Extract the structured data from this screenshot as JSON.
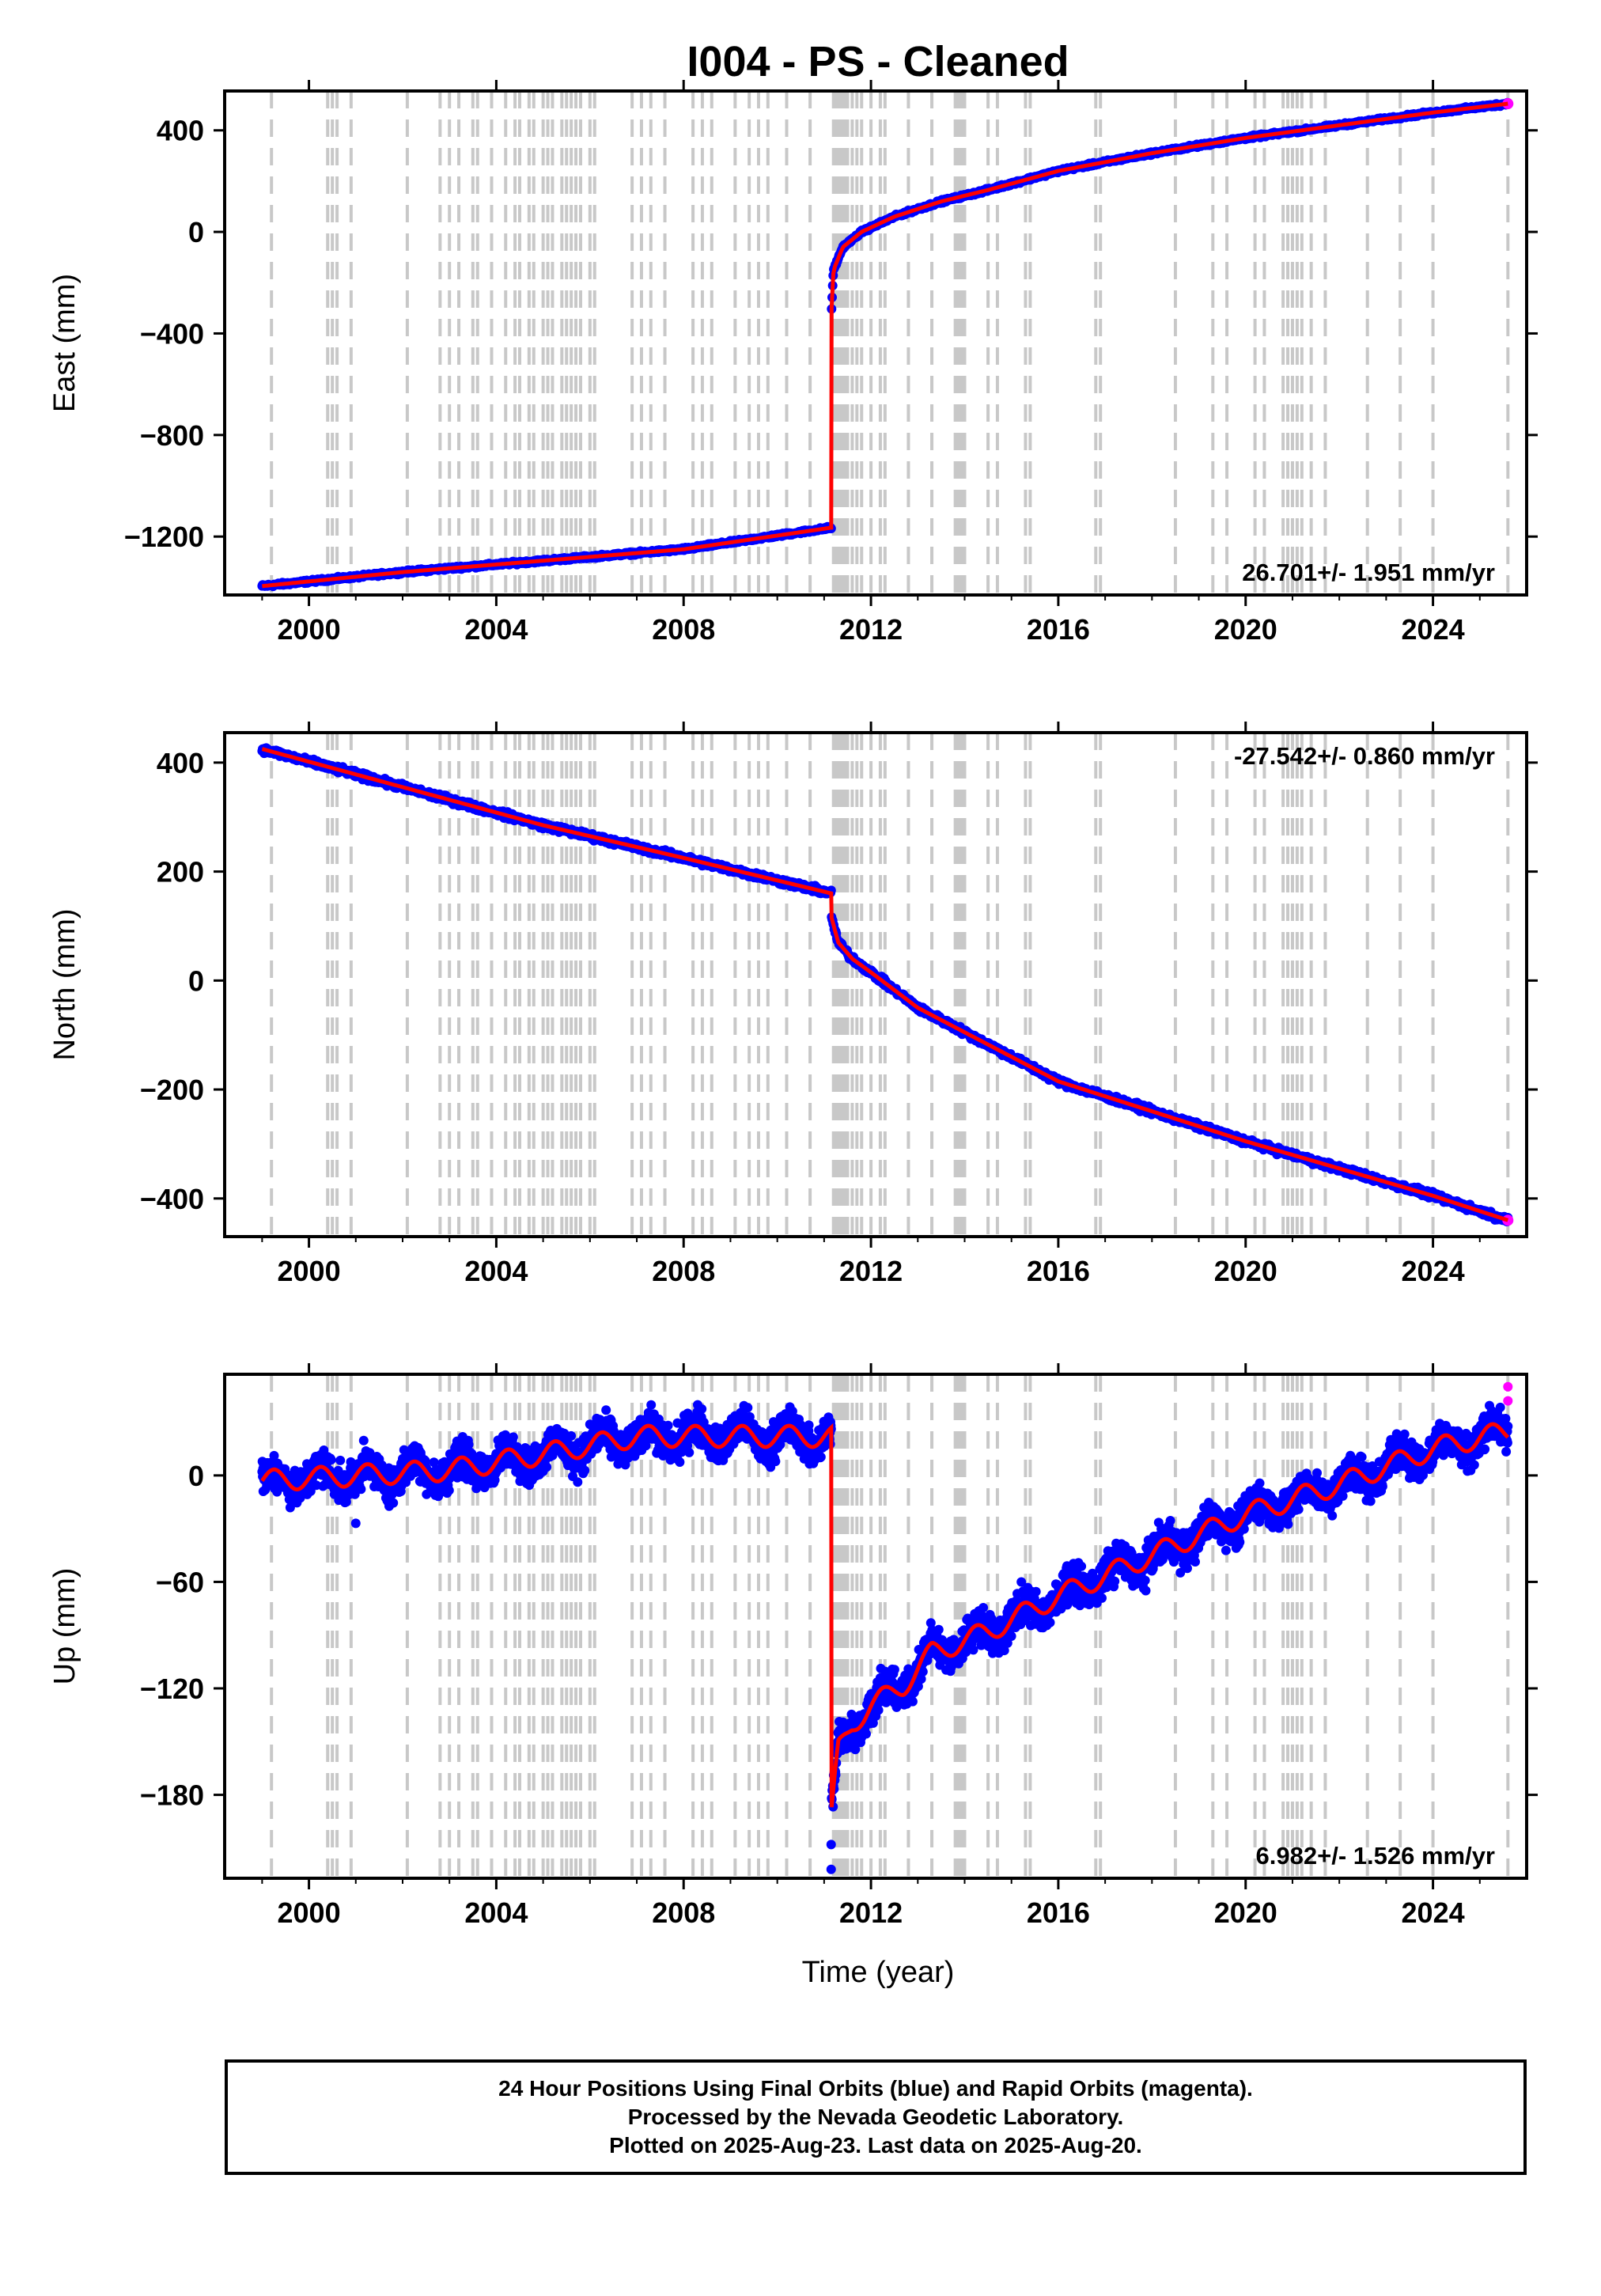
{
  "title": "I004  - PS - Cleaned",
  "xlabel": "Time (year)",
  "colors": {
    "final": "#0000ff",
    "rapid": "#ff00ff",
    "model": "#ff0000",
    "event": "#c8c8c8"
  },
  "footer": [
    "24 Hour Positions Using Final Orbits (blue) and Rapid Orbits (magenta).",
    "Processed by the Nevada Geodetic Laboratory.",
    "Plotted on 2025-Aug-23. Last data on 2025-Aug-20."
  ],
  "chart_data": [
    {
      "type": "scatter",
      "ylabel": "East (mm)",
      "rate_label": "26.701+/- 1.951 mm/yr",
      "rate_position": "bottom-right",
      "xlim": [
        1998.2,
        2026.0
      ],
      "ylim": [
        -1430,
        555
      ],
      "yticks": [
        400,
        0,
        -400,
        -800,
        -1200
      ],
      "xticks": [
        2000,
        2004,
        2008,
        2012,
        2016,
        2020,
        2024
      ],
      "series": [
        {
          "kind": "data",
          "x": [
            1999.0,
            2002.0,
            2005.0,
            2008.0,
            2011.15
          ],
          "y": [
            -1395,
            -1340,
            -1295,
            -1250,
            -1165
          ]
        },
        {
          "kind": "data",
          "x": [
            2011.16,
            2011.2,
            2011.4,
            2011.8,
            2012.5,
            2013.5,
            2014.5,
            2016.0,
            2018.0,
            2020.0,
            2022.0,
            2024.0,
            2025.6
          ],
          "y": [
            -300,
            -150,
            -60,
            0,
            60,
            120,
            165,
            240,
            310,
            370,
            420,
            470,
            505
          ]
        }
      ],
      "rapid_points": {
        "x": [
          2025.6
        ],
        "y": [
          505
        ]
      }
    },
    {
      "type": "scatter",
      "ylabel": "North (mm)",
      "rate_label": "-27.542+/- 0.860 mm/yr",
      "rate_position": "top-right",
      "xlim": [
        1998.2,
        2026.0
      ],
      "ylim": [
        -470,
        455
      ],
      "yticks": [
        400,
        200,
        0,
        -200,
        -400
      ],
      "xticks": [
        2000,
        2004,
        2008,
        2012,
        2016,
        2020,
        2024
      ],
      "series": [
        {
          "kind": "data",
          "x": [
            1999.0,
            2002.0,
            2005.0,
            2008.0,
            2011.15
          ],
          "y": [
            425,
            355,
            285,
            225,
            160
          ]
        },
        {
          "kind": "data",
          "x": [
            2011.16,
            2011.3,
            2011.6,
            2012.0,
            2013.0,
            2014.0,
            2016.0,
            2018.0,
            2020.0,
            2022.0,
            2024.0,
            2025.6
          ],
          "y": [
            115,
            70,
            40,
            15,
            -50,
            -95,
            -185,
            -240,
            -295,
            -345,
            -395,
            -440
          ]
        }
      ],
      "rapid_points": {
        "x": [
          2025.6
        ],
        "y": [
          -440
        ]
      }
    },
    {
      "type": "scatter",
      "ylabel": "Up (mm)",
      "rate_label": "6.982+/- 1.526 mm/yr",
      "rate_position": "bottom-right",
      "xlim": [
        1998.2,
        2026.0
      ],
      "ylim": [
        -227,
        57
      ],
      "yticks": [
        0,
        -60,
        -120,
        -180
      ],
      "xticks": [
        2000,
        2004,
        2008,
        2012,
        2016,
        2020,
        2024
      ],
      "series": [
        {
          "kind": "data",
          "x": [
            1999.0,
            2001.0,
            2003.0,
            2005.0,
            2007.0,
            2009.0,
            2011.15
          ],
          "y": [
            -3,
            0,
            3,
            12,
            22,
            22,
            22
          ]
        },
        {
          "kind": "data",
          "x": [
            2011.16,
            2011.3,
            2011.6,
            2012.0,
            2012.7,
            2013.3,
            2014.5,
            2016.0,
            2018.0,
            2020.0,
            2022.0,
            2024.0,
            2025.6
          ],
          "y": [
            -192,
            -155,
            -140,
            -130,
            -118,
            -100,
            -88,
            -68,
            -45,
            -22,
            -5,
            15,
            25
          ]
        }
      ],
      "outliers": {
        "x": [
          2011.15,
          2011.15,
          2011.2,
          2001.0,
          2025.6,
          2025.6
        ],
        "y": [
          -222,
          -208,
          -175,
          -27,
          50,
          42
        ]
      }
    }
  ]
}
